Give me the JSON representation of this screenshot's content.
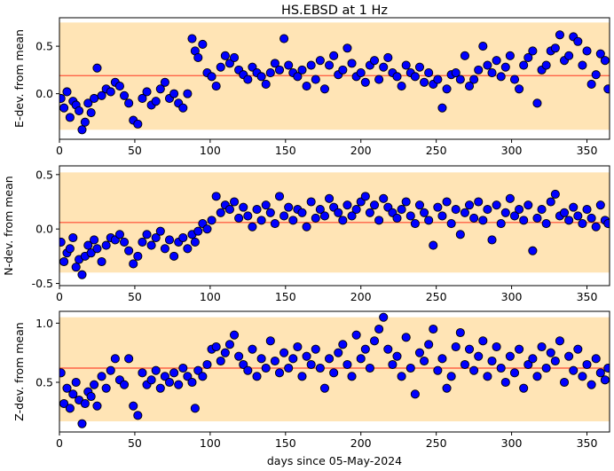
{
  "title": "HS.EBSD at 1 Hz",
  "xlabel": "days since 05-May-2024",
  "colors": {
    "point_fill": "#0000ff",
    "point_edge": "#000000",
    "band": "#ffe4b5",
    "mean_line": "#ff6347"
  },
  "chart_data": [
    {
      "type": "scatter",
      "ylabel": "E-dev. from mean",
      "xlim": [
        0,
        365
      ],
      "ylim": [
        -0.48,
        0.8
      ],
      "xticks": [
        0,
        50,
        100,
        150,
        200,
        250,
        300,
        350
      ],
      "yticks": [
        0.0,
        0.5
      ],
      "band": [
        -0.38,
        0.75
      ],
      "mean": 0.19,
      "x": [
        1,
        3,
        5,
        7,
        9,
        11,
        13,
        15,
        17,
        19,
        21,
        23,
        25,
        28,
        31,
        34,
        37,
        40,
        43,
        46,
        49,
        52,
        55,
        58,
        61,
        64,
        67,
        70,
        73,
        76,
        79,
        82,
        85,
        88,
        90,
        92,
        95,
        98,
        101,
        104,
        107,
        110,
        113,
        116,
        119,
        122,
        125,
        128,
        131,
        134,
        137,
        140,
        143,
        146,
        149,
        152,
        155,
        158,
        161,
        164,
        167,
        170,
        173,
        176,
        179,
        182,
        185,
        188,
        191,
        194,
        197,
        200,
        203,
        206,
        209,
        212,
        215,
        218,
        221,
        224,
        227,
        230,
        233,
        236,
        239,
        242,
        245,
        248,
        251,
        254,
        257,
        260,
        263,
        266,
        269,
        272,
        275,
        278,
        281,
        284,
        287,
        290,
        293,
        296,
        299,
        302,
        305,
        308,
        311,
        314,
        317,
        320,
        323,
        326,
        329,
        332,
        335,
        338,
        341,
        344,
        347,
        350,
        353,
        356,
        359,
        362,
        364
      ],
      "y": [
        -0.05,
        -0.15,
        0.02,
        -0.25,
        -0.08,
        -0.12,
        -0.18,
        -0.38,
        -0.3,
        -0.1,
        -0.2,
        -0.05,
        0.27,
        -0.02,
        0.05,
        0.02,
        0.12,
        0.08,
        -0.02,
        -0.1,
        -0.28,
        -0.32,
        -0.05,
        0.02,
        -0.12,
        -0.08,
        0.05,
        0.12,
        -0.05,
        0.0,
        -0.1,
        -0.15,
        0.0,
        0.58,
        0.45,
        0.38,
        0.52,
        0.22,
        0.18,
        0.08,
        0.28,
        0.4,
        0.32,
        0.38,
        0.25,
        0.2,
        0.15,
        0.28,
        0.22,
        0.18,
        0.1,
        0.22,
        0.32,
        0.25,
        0.58,
        0.3,
        0.22,
        0.18,
        0.25,
        0.08,
        0.3,
        0.15,
        0.35,
        0.05,
        0.3,
        0.4,
        0.2,
        0.25,
        0.48,
        0.32,
        0.18,
        0.22,
        0.12,
        0.3,
        0.35,
        0.15,
        0.28,
        0.38,
        0.22,
        0.18,
        0.08,
        0.3,
        0.22,
        0.18,
        0.28,
        0.12,
        0.22,
        0.1,
        0.15,
        -0.15,
        0.05,
        0.2,
        0.22,
        0.15,
        0.4,
        0.08,
        0.15,
        0.25,
        0.5,
        0.3,
        0.22,
        0.35,
        0.18,
        0.28,
        0.4,
        0.15,
        0.05,
        0.3,
        0.38,
        0.45,
        -0.1,
        0.25,
        0.3,
        0.45,
        0.48,
        0.62,
        0.35,
        0.4,
        0.6,
        0.55,
        0.3,
        0.45,
        0.1,
        0.2,
        0.42,
        0.35,
        0.05
      ]
    },
    {
      "type": "scatter",
      "ylabel": "N-dev. from mean",
      "xlim": [
        0,
        365
      ],
      "ylim": [
        -0.52,
        0.58
      ],
      "xticks": [
        0,
        50,
        100,
        150,
        200,
        250,
        300,
        350
      ],
      "yticks": [
        -0.5,
        0.0,
        0.5
      ],
      "band": [
        -0.4,
        0.52
      ],
      "mean": 0.06,
      "x": [
        1,
        3,
        5,
        7,
        9,
        11,
        13,
        15,
        17,
        19,
        21,
        23,
        25,
        28,
        31,
        34,
        37,
        40,
        43,
        46,
        49,
        52,
        55,
        58,
        61,
        64,
        67,
        70,
        73,
        76,
        79,
        82,
        85,
        88,
        90,
        92,
        95,
        98,
        101,
        104,
        107,
        110,
        113,
        116,
        119,
        122,
        125,
        128,
        131,
        134,
        137,
        140,
        143,
        146,
        149,
        152,
        155,
        158,
        161,
        164,
        167,
        170,
        173,
        176,
        179,
        182,
        185,
        188,
        191,
        194,
        197,
        200,
        203,
        206,
        209,
        212,
        215,
        218,
        221,
        224,
        227,
        230,
        233,
        236,
        239,
        242,
        245,
        248,
        251,
        254,
        257,
        260,
        263,
        266,
        269,
        272,
        275,
        278,
        281,
        284,
        287,
        290,
        293,
        296,
        299,
        302,
        305,
        308,
        311,
        314,
        317,
        320,
        323,
        326,
        329,
        332,
        335,
        338,
        341,
        344,
        347,
        350,
        353,
        356,
        359,
        362,
        364
      ],
      "y": [
        -0.12,
        -0.3,
        -0.22,
        -0.18,
        -0.08,
        -0.35,
        -0.28,
        -0.42,
        -0.25,
        -0.15,
        -0.22,
        -0.1,
        -0.18,
        -0.3,
        -0.15,
        -0.08,
        -0.1,
        -0.05,
        -0.12,
        -0.2,
        -0.32,
        -0.25,
        -0.12,
        -0.05,
        -0.15,
        -0.08,
        -0.02,
        -0.18,
        -0.1,
        -0.25,
        -0.12,
        -0.08,
        -0.18,
        -0.05,
        -0.12,
        -0.02,
        0.05,
        0.0,
        0.08,
        0.3,
        0.15,
        0.22,
        0.18,
        0.25,
        0.1,
        0.2,
        0.12,
        0.02,
        0.18,
        0.08,
        0.22,
        0.15,
        0.05,
        0.3,
        0.12,
        0.2,
        0.08,
        0.18,
        0.15,
        0.02,
        0.25,
        0.1,
        0.18,
        0.12,
        0.28,
        0.2,
        0.15,
        0.08,
        0.22,
        0.12,
        0.18,
        0.25,
        0.3,
        0.15,
        0.22,
        0.08,
        0.28,
        0.2,
        0.15,
        0.1,
        0.18,
        0.25,
        0.12,
        0.05,
        0.22,
        0.15,
        0.08,
        -0.15,
        0.2,
        0.12,
        0.25,
        0.05,
        0.18,
        -0.05,
        0.15,
        0.22,
        0.1,
        0.25,
        0.08,
        0.18,
        -0.1,
        0.22,
        0.05,
        0.15,
        0.28,
        0.12,
        0.18,
        0.08,
        0.22,
        -0.2,
        0.1,
        0.18,
        0.05,
        0.25,
        0.32,
        0.12,
        0.15,
        0.08,
        0.2,
        0.12,
        0.05,
        0.18,
        0.1,
        0.02,
        0.22,
        0.08,
        0.05
      ]
    },
    {
      "type": "scatter",
      "ylabel": "Z-dev. from mean",
      "xlim": [
        0,
        365
      ],
      "ylim": [
        0.08,
        1.1
      ],
      "xticks": [
        0,
        50,
        100,
        150,
        200,
        250,
        300,
        350
      ],
      "yticks": [
        0.5,
        1.0
      ],
      "band": [
        0.17,
        1.05
      ],
      "mean": 0.62,
      "x": [
        1,
        3,
        5,
        7,
        9,
        11,
        13,
        15,
        17,
        19,
        21,
        23,
        25,
        28,
        31,
        34,
        37,
        40,
        43,
        46,
        49,
        52,
        55,
        58,
        61,
        64,
        67,
        70,
        73,
        76,
        79,
        82,
        85,
        88,
        90,
        92,
        95,
        98,
        101,
        104,
        107,
        110,
        113,
        116,
        119,
        122,
        125,
        128,
        131,
        134,
        137,
        140,
        143,
        146,
        149,
        152,
        155,
        158,
        161,
        164,
        167,
        170,
        173,
        176,
        179,
        182,
        185,
        188,
        191,
        194,
        197,
        200,
        203,
        206,
        209,
        212,
        215,
        218,
        221,
        224,
        227,
        230,
        233,
        236,
        239,
        242,
        245,
        248,
        251,
        254,
        257,
        260,
        263,
        266,
        269,
        272,
        275,
        278,
        281,
        284,
        287,
        290,
        293,
        296,
        299,
        302,
        305,
        308,
        311,
        314,
        317,
        320,
        323,
        326,
        329,
        332,
        335,
        338,
        341,
        344,
        347,
        350,
        353,
        356,
        359,
        362,
        364
      ],
      "y": [
        0.58,
        0.32,
        0.45,
        0.28,
        0.4,
        0.5,
        0.35,
        0.15,
        0.32,
        0.42,
        0.38,
        0.48,
        0.3,
        0.55,
        0.45,
        0.6,
        0.7,
        0.52,
        0.48,
        0.7,
        0.3,
        0.22,
        0.58,
        0.48,
        0.52,
        0.6,
        0.45,
        0.55,
        0.5,
        0.58,
        0.48,
        0.62,
        0.55,
        0.5,
        0.28,
        0.6,
        0.55,
        0.65,
        0.78,
        0.8,
        0.68,
        0.75,
        0.82,
        0.9,
        0.72,
        0.65,
        0.6,
        0.78,
        0.55,
        0.7,
        0.62,
        0.85,
        0.68,
        0.58,
        0.75,
        0.62,
        0.7,
        0.8,
        0.55,
        0.72,
        0.65,
        0.78,
        0.62,
        0.45,
        0.7,
        0.58,
        0.75,
        0.82,
        0.65,
        0.55,
        0.9,
        0.7,
        0.78,
        0.62,
        0.85,
        0.95,
        1.05,
        0.78,
        0.65,
        0.72,
        0.55,
        0.88,
        0.62,
        0.4,
        0.75,
        0.68,
        0.82,
        0.95,
        0.6,
        0.7,
        0.45,
        0.55,
        0.8,
        0.92,
        0.65,
        0.78,
        0.6,
        0.72,
        0.85,
        0.55,
        0.68,
        0.8,
        0.62,
        0.5,
        0.72,
        0.58,
        0.78,
        0.45,
        0.65,
        0.7,
        0.55,
        0.8,
        0.62,
        0.75,
        0.68,
        0.85,
        0.5,
        0.72,
        0.6,
        0.78,
        0.55,
        0.65,
        0.48,
        0.7,
        0.58,
        0.52,
        0.62
      ]
    }
  ]
}
